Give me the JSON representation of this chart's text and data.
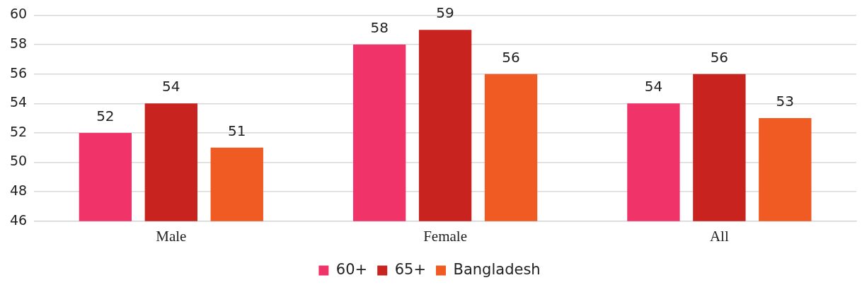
{
  "chart_data": {
    "type": "bar",
    "categories": [
      "Male",
      "Female",
      "All"
    ],
    "series": [
      {
        "name": "60+",
        "color": "#f03368",
        "values": [
          52,
          58,
          54
        ]
      },
      {
        "name": "65+",
        "color": "#c8231e",
        "values": [
          54,
          59,
          56
        ]
      },
      {
        "name": "Bangladesh",
        "color": "#f05a23",
        "values": [
          51,
          56,
          53
        ]
      }
    ],
    "ylim": [
      46,
      60
    ],
    "yticks": [
      46,
      48,
      50,
      52,
      54,
      56,
      58,
      60
    ],
    "grid": "y",
    "legend": "bottom",
    "data_labels": true
  }
}
